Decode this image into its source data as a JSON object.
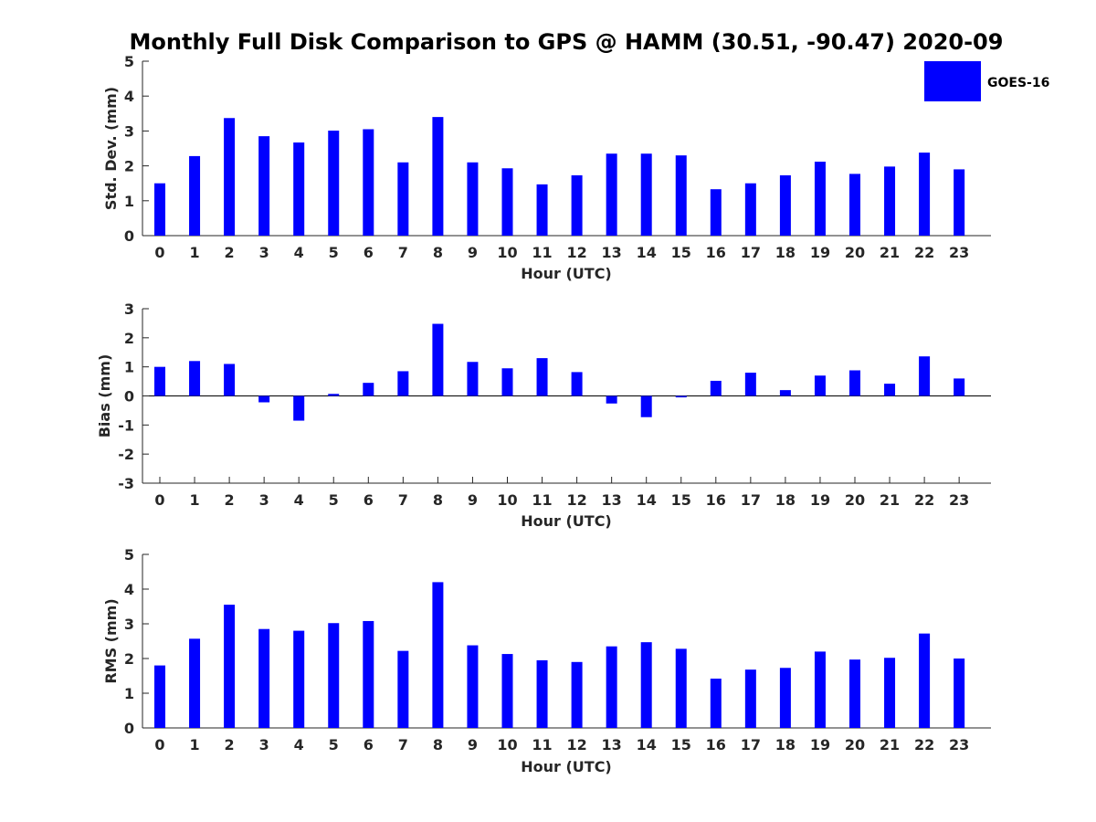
{
  "title": "Monthly Full Disk Comparison to GPS @ HAMM (30.51, -90.47) 2020-09",
  "legend": {
    "label": "GOES-16",
    "color": "#0000ff",
    "placement": "top-right"
  },
  "chart_data": [
    {
      "type": "bar",
      "xlabel": "Hour (UTC)",
      "ylabel": "Std. Dev. (mm)",
      "ylim": [
        0,
        5
      ],
      "yticks": [
        "0",
        "1",
        "2",
        "3",
        "4",
        "5"
      ],
      "categories": [
        "0",
        "1",
        "2",
        "3",
        "4",
        "5",
        "6",
        "7",
        "8",
        "9",
        "10",
        "11",
        "12",
        "13",
        "14",
        "15",
        "16",
        "17",
        "18",
        "19",
        "20",
        "21",
        "22",
        "23"
      ],
      "series": [
        {
          "name": "GOES-16",
          "color": "#0000ff",
          "values": [
            1.5,
            2.28,
            3.37,
            2.85,
            2.67,
            3.01,
            3.05,
            2.1,
            3.4,
            2.1,
            1.93,
            1.47,
            1.73,
            2.35,
            2.35,
            2.3,
            1.33,
            1.5,
            1.73,
            2.12,
            1.77,
            1.98,
            2.38,
            1.9
          ]
        }
      ],
      "grid": false
    },
    {
      "type": "bar",
      "xlabel": "Hour (UTC)",
      "ylabel": "Bias (mm)",
      "ylim": [
        -3,
        3
      ],
      "yticks": [
        "-3",
        "-2",
        "-1",
        "0",
        "1",
        "2",
        "3"
      ],
      "categories": [
        "0",
        "1",
        "2",
        "3",
        "4",
        "5",
        "6",
        "7",
        "8",
        "9",
        "10",
        "11",
        "12",
        "13",
        "14",
        "15",
        "16",
        "17",
        "18",
        "19",
        "20",
        "21",
        "22",
        "23"
      ],
      "series": [
        {
          "name": "GOES-16",
          "color": "#0000ff",
          "values": [
            1.0,
            1.2,
            1.1,
            -0.22,
            -0.85,
            0.07,
            0.45,
            0.85,
            2.48,
            1.17,
            0.95,
            1.3,
            0.82,
            -0.26,
            -0.73,
            -0.05,
            0.52,
            0.8,
            0.2,
            0.7,
            0.88,
            0.42,
            1.36,
            0.6
          ]
        }
      ],
      "grid": false
    },
    {
      "type": "bar",
      "xlabel": "Hour (UTC)",
      "ylabel": "RMS (mm)",
      "ylim": [
        0,
        5
      ],
      "yticks": [
        "0",
        "1",
        "2",
        "3",
        "4",
        "5"
      ],
      "categories": [
        "0",
        "1",
        "2",
        "3",
        "4",
        "5",
        "6",
        "7",
        "8",
        "9",
        "10",
        "11",
        "12",
        "13",
        "14",
        "15",
        "16",
        "17",
        "18",
        "19",
        "20",
        "21",
        "22",
        "23"
      ],
      "series": [
        {
          "name": "GOES-16",
          "color": "#0000ff",
          "values": [
            1.8,
            2.57,
            3.55,
            2.85,
            2.8,
            3.02,
            3.08,
            2.22,
            4.2,
            2.38,
            2.13,
            1.95,
            1.9,
            2.35,
            2.47,
            2.28,
            1.42,
            1.68,
            1.73,
            2.2,
            1.97,
            2.02,
            2.72,
            2.0
          ]
        }
      ],
      "grid": false
    }
  ]
}
